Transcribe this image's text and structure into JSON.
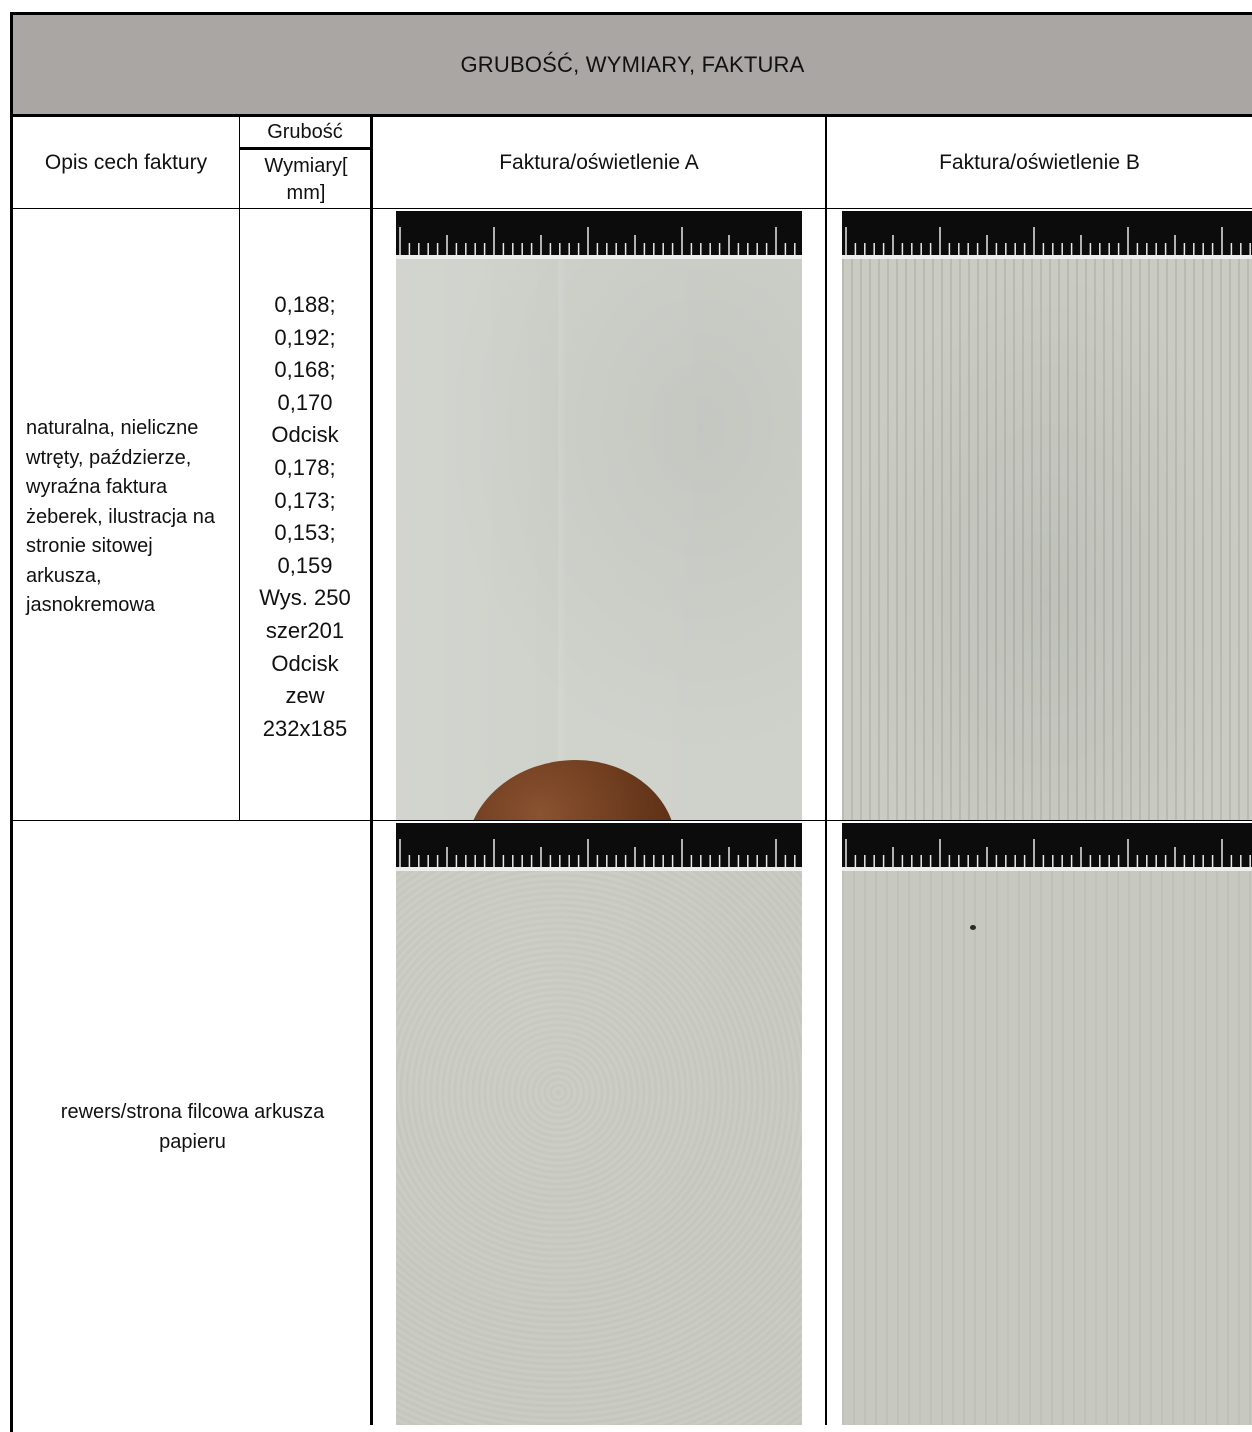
{
  "title": "GRUBOŚĆ, WYMIARY, FAKTURA",
  "headers": {
    "description": "Opis cech faktury",
    "thickness": "Grubość",
    "dimensions": "Wymiary[ mm]",
    "texture_a": "Faktura/oświetlenie A",
    "texture_b": "Faktura/oświetlenie B"
  },
  "rows": [
    {
      "description": "naturalna, nieliczne wtręty, paździerze, wyraźna faktura żeberek, ilustracja na stronie sitowej arkusza, jasnokremowa",
      "measurements": "0,188; 0,192; 0,168; 0,170 Odcisk 0,178; 0,173; 0,153; 0,159 Wys. 250 szer201 Odcisk zew 232x185"
    },
    {
      "description": "rewers/strona filcowa arkusza papieru"
    }
  ]
}
